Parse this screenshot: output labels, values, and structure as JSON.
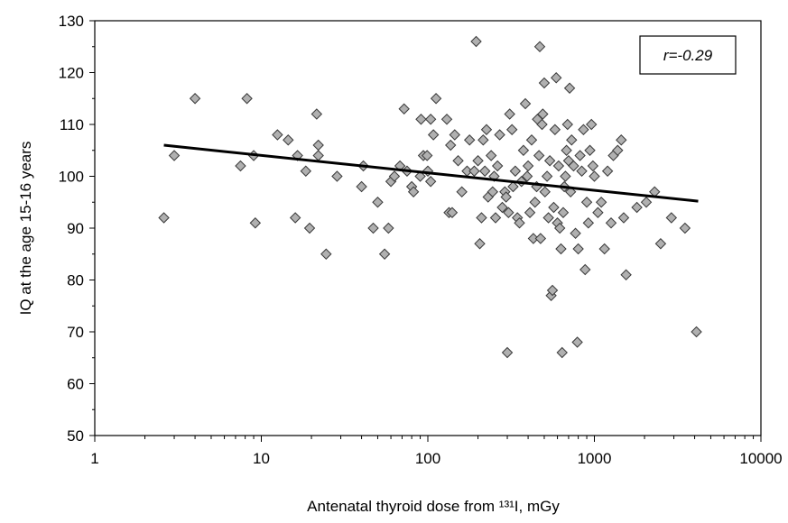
{
  "chart_data": {
    "type": "scatter",
    "title": "",
    "xlabel": "Antenatal thyroid dose from ¹³¹I, mGy",
    "ylabel": "IQ at the age 15-16 years",
    "xscale": "log",
    "xlim": [
      1,
      10000
    ],
    "ylim": [
      50,
      130
    ],
    "xticks": [
      1,
      10,
      100,
      1000,
      10000
    ],
    "xtick_labels": [
      "1",
      "10",
      "100",
      "1000",
      "10000"
    ],
    "yticks": [
      50,
      60,
      70,
      80,
      90,
      100,
      110,
      120,
      130
    ],
    "ytick_labels": [
      "50",
      "60",
      "70",
      "80",
      "90",
      "100",
      "110",
      "120",
      "130"
    ],
    "grid": false,
    "legend": "none",
    "marker": "diamond",
    "marker_fill": "#b0b0b0",
    "marker_edge": "#3a3a3a",
    "annotation": {
      "text": "r=-0.29",
      "position": "top-right"
    },
    "trendline": {
      "x": [
        2.6,
        4200
      ],
      "y": [
        106,
        95.2
      ],
      "color": "#000000"
    },
    "series": [
      {
        "points": [
          [
            2.6,
            92
          ],
          [
            3.0,
            104
          ],
          [
            4.0,
            115
          ],
          [
            7.5,
            102
          ],
          [
            8.2,
            115
          ],
          [
            9.0,
            104
          ],
          [
            9.2,
            91
          ],
          [
            12.5,
            108
          ],
          [
            14.5,
            107
          ],
          [
            16,
            92
          ],
          [
            16.5,
            104
          ],
          [
            18.5,
            101
          ],
          [
            19.5,
            90
          ],
          [
            21.5,
            112
          ],
          [
            22,
            106
          ],
          [
            22,
            104
          ],
          [
            24.5,
            85
          ],
          [
            28.5,
            100
          ],
          [
            40,
            98
          ],
          [
            41,
            102
          ],
          [
            47,
            90
          ],
          [
            50,
            95
          ],
          [
            55,
            85
          ],
          [
            58,
            90
          ],
          [
            60,
            99
          ],
          [
            63,
            100
          ],
          [
            68,
            102
          ],
          [
            72,
            113
          ],
          [
            75,
            101
          ],
          [
            80,
            98
          ],
          [
            82,
            97
          ],
          [
            90,
            100
          ],
          [
            91,
            111
          ],
          [
            94,
            104
          ],
          [
            99,
            104
          ],
          [
            100,
            101
          ],
          [
            104,
            99
          ],
          [
            104,
            111
          ],
          [
            108,
            108
          ],
          [
            112,
            115
          ],
          [
            130,
            111
          ],
          [
            134,
            93
          ],
          [
            137,
            106
          ],
          [
            140,
            93
          ],
          [
            145,
            108
          ],
          [
            152,
            103
          ],
          [
            160,
            97
          ],
          [
            172,
            101
          ],
          [
            178,
            107
          ],
          [
            190,
            101
          ],
          [
            195,
            126
          ],
          [
            200,
            103
          ],
          [
            205,
            87
          ],
          [
            210,
            92
          ],
          [
            215,
            107
          ],
          [
            220,
            101
          ],
          [
            225,
            109
          ],
          [
            230,
            96
          ],
          [
            240,
            104
          ],
          [
            245,
            97
          ],
          [
            250,
            100
          ],
          [
            255,
            92
          ],
          [
            262,
            102
          ],
          [
            270,
            108
          ],
          [
            280,
            94
          ],
          [
            290,
            97
          ],
          [
            295,
            96
          ],
          [
            300,
            66
          ],
          [
            305,
            93
          ],
          [
            310,
            112
          ],
          [
            320,
            109
          ],
          [
            325,
            98
          ],
          [
            335,
            101
          ],
          [
            345,
            92
          ],
          [
            355,
            91
          ],
          [
            365,
            99
          ],
          [
            375,
            105
          ],
          [
            385,
            114
          ],
          [
            395,
            100
          ],
          [
            400,
            102
          ],
          [
            410,
            93
          ],
          [
            420,
            107
          ],
          [
            430,
            88
          ],
          [
            440,
            95
          ],
          [
            450,
            98
          ],
          [
            455,
            111
          ],
          [
            465,
            104
          ],
          [
            470,
            125
          ],
          [
            475,
            88
          ],
          [
            485,
            110
          ],
          [
            490,
            112
          ],
          [
            500,
            118
          ],
          [
            505,
            97
          ],
          [
            520,
            100
          ],
          [
            530,
            92
          ],
          [
            540,
            103
          ],
          [
            550,
            77
          ],
          [
            560,
            78
          ],
          [
            570,
            94
          ],
          [
            580,
            109
          ],
          [
            590,
            119
          ],
          [
            600,
            91
          ],
          [
            610,
            102
          ],
          [
            620,
            90
          ],
          [
            630,
            86
          ],
          [
            640,
            66
          ],
          [
            650,
            93
          ],
          [
            660,
            98
          ],
          [
            670,
            100
          ],
          [
            680,
            105
          ],
          [
            690,
            110
          ],
          [
            700,
            103
          ],
          [
            710,
            117
          ],
          [
            720,
            97
          ],
          [
            730,
            107
          ],
          [
            750,
            102
          ],
          [
            770,
            89
          ],
          [
            790,
            68
          ],
          [
            800,
            86
          ],
          [
            820,
            104
          ],
          [
            840,
            101
          ],
          [
            860,
            109
          ],
          [
            880,
            82
          ],
          [
            900,
            95
          ],
          [
            920,
            91
          ],
          [
            940,
            105
          ],
          [
            960,
            110
          ],
          [
            980,
            102
          ],
          [
            1000,
            100
          ],
          [
            1050,
            93
          ],
          [
            1100,
            95
          ],
          [
            1150,
            86
          ],
          [
            1200,
            101
          ],
          [
            1260,
            91
          ],
          [
            1300,
            104
          ],
          [
            1380,
            105
          ],
          [
            1450,
            107
          ],
          [
            1500,
            92
          ],
          [
            1550,
            81
          ],
          [
            1800,
            94
          ],
          [
            2050,
            95
          ],
          [
            2300,
            97
          ],
          [
            2500,
            87
          ],
          [
            2900,
            92
          ],
          [
            3500,
            90
          ],
          [
            4100,
            70
          ]
        ]
      }
    ]
  }
}
